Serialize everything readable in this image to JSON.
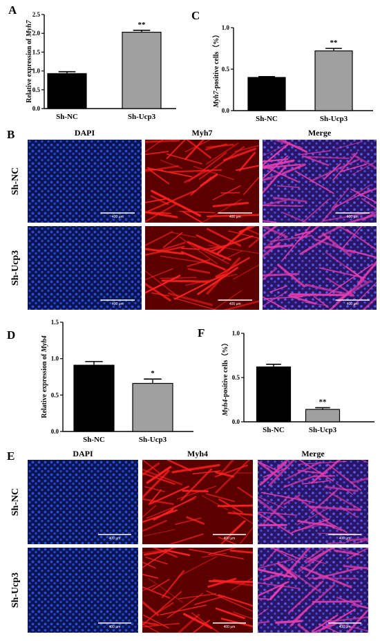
{
  "panels": {
    "A": "A",
    "B": "B",
    "C": "C",
    "D": "D",
    "E": "E",
    "F": "F"
  },
  "chart_data": [
    {
      "id": "A",
      "type": "bar",
      "categories": [
        "Sh-NC",
        "Sh-Ucp3"
      ],
      "values": [
        0.93,
        2.03
      ],
      "errors": [
        0.05,
        0.05
      ],
      "colors": [
        "#000000",
        "#a0a0a0"
      ],
      "ylabel_prefix": "Relative expression of ",
      "ylabel_gene": "Myh7",
      "ylim": [
        0,
        2.5
      ],
      "yticks": [
        "0.0",
        "0.5",
        "1.0",
        "1.5",
        "2.0",
        "2.5"
      ],
      "significance": [
        "",
        "**"
      ]
    },
    {
      "id": "C",
      "type": "bar",
      "categories": [
        "Sh-NC",
        "Sh-Ucp3"
      ],
      "values": [
        0.4,
        0.72
      ],
      "errors": [
        0.01,
        0.03
      ],
      "colors": [
        "#000000",
        "#a0a0a0"
      ],
      "ylabel_gene": "Myh7",
      "ylabel_suffix": "-positive cells（%）",
      "ylim": [
        0,
        1.0
      ],
      "yticks": [
        "0.0",
        "0.5",
        "1.0"
      ],
      "significance": [
        "",
        "**"
      ]
    },
    {
      "id": "D",
      "type": "bar",
      "categories": [
        "Sh-NC",
        "Sh-Ucp3"
      ],
      "values": [
        0.91,
        0.66
      ],
      "errors": [
        0.05,
        0.06
      ],
      "colors": [
        "#000000",
        "#a0a0a0"
      ],
      "ylabel_prefix": "Relative expression of ",
      "ylabel_gene": "Myh4",
      "ylim": [
        0,
        1.5
      ],
      "yticks": [
        "0.0",
        "0.5",
        "1.0",
        "1.5"
      ],
      "significance": [
        "",
        "*"
      ]
    },
    {
      "id": "F",
      "type": "bar",
      "categories": [
        "Sh-NC",
        "Sh-Ucp3"
      ],
      "values": [
        0.62,
        0.14
      ],
      "errors": [
        0.03,
        0.02
      ],
      "colors": [
        "#000000",
        "#a0a0a0"
      ],
      "ylabel_gene": "Myh4",
      "ylabel_suffix": "-positive cells（%）",
      "ylim": [
        0,
        1.0
      ],
      "yticks": [
        "0.0",
        "0.5",
        "1.0"
      ],
      "significance": [
        "",
        "**"
      ]
    }
  ],
  "micrographs": {
    "B": {
      "columns": [
        "DAPI",
        "Myh7",
        "Merge"
      ],
      "rows": [
        "Sh-NC",
        "Sh-Ucp3"
      ],
      "scale_label": "400 μm",
      "types": [
        "dapi",
        "myh",
        "merge"
      ]
    },
    "E": {
      "columns": [
        "DAPI",
        "Myh4",
        "Merge"
      ],
      "rows": [
        "Sh-NC",
        "Sh-Ucp3"
      ],
      "scale_label": "400 μm",
      "types": [
        "dapi",
        "myh",
        "merge"
      ]
    }
  },
  "colors": {
    "dapi_bg": "#0a1450",
    "dapi_nucleus": "#2e4bd8",
    "myh_bg": "#5a0000",
    "myh_fiber": "#ff2020",
    "merge_bg": "#3a1a70",
    "merge_fiber": "#e83cb0"
  }
}
